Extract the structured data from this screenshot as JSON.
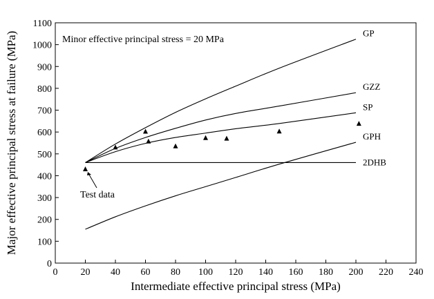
{
  "chart_data": {
    "type": "line",
    "annotation_text": "Minor effective principal stress = 20 MPa",
    "xlabel": "Intermediate effective principal stress (MPa)",
    "ylabel": "Major effective principal stress at failure (MPa)",
    "xlim": [
      0,
      240
    ],
    "ylim": [
      0,
      1100
    ],
    "x_ticks": [
      0,
      20,
      40,
      60,
      80,
      100,
      120,
      140,
      160,
      180,
      200,
      220,
      240
    ],
    "y_ticks": [
      0,
      100,
      200,
      300,
      400,
      500,
      600,
      700,
      800,
      900,
      1000,
      1100
    ],
    "grid": false,
    "series": [
      {
        "name": "GP",
        "kind": "line",
        "x": [
          20,
          40,
          60,
          80,
          100,
          120,
          150,
          200
        ],
        "y": [
          460,
          545,
          620,
          690,
          752,
          810,
          895,
          1025
        ]
      },
      {
        "name": "GZZ",
        "kind": "line",
        "x": [
          20,
          40,
          60,
          80,
          100,
          120,
          150,
          200
        ],
        "y": [
          460,
          525,
          575,
          617,
          655,
          685,
          720,
          780
        ]
      },
      {
        "name": "SP",
        "kind": "line",
        "x": [
          20,
          40,
          60,
          80,
          100,
          120,
          150,
          200
        ],
        "y": [
          460,
          510,
          548,
          575,
          595,
          615,
          640,
          688
        ]
      },
      {
        "name": "GPH",
        "kind": "line",
        "x": [
          20,
          40,
          60,
          80,
          100,
          120,
          150,
          200
        ],
        "y": [
          155,
          212,
          262,
          308,
          350,
          392,
          455,
          553
        ]
      },
      {
        "name": "2DHB",
        "kind": "line",
        "x": [
          20,
          200
        ],
        "y": [
          460,
          460
        ]
      },
      {
        "name": "Test data",
        "kind": "scatter",
        "x": [
          20,
          40,
          60,
          62,
          80,
          100,
          114,
          149,
          202
        ],
        "y": [
          430,
          530,
          602,
          557,
          535,
          573,
          570,
          603,
          638
        ]
      }
    ],
    "test_data_label": "Test data"
  }
}
